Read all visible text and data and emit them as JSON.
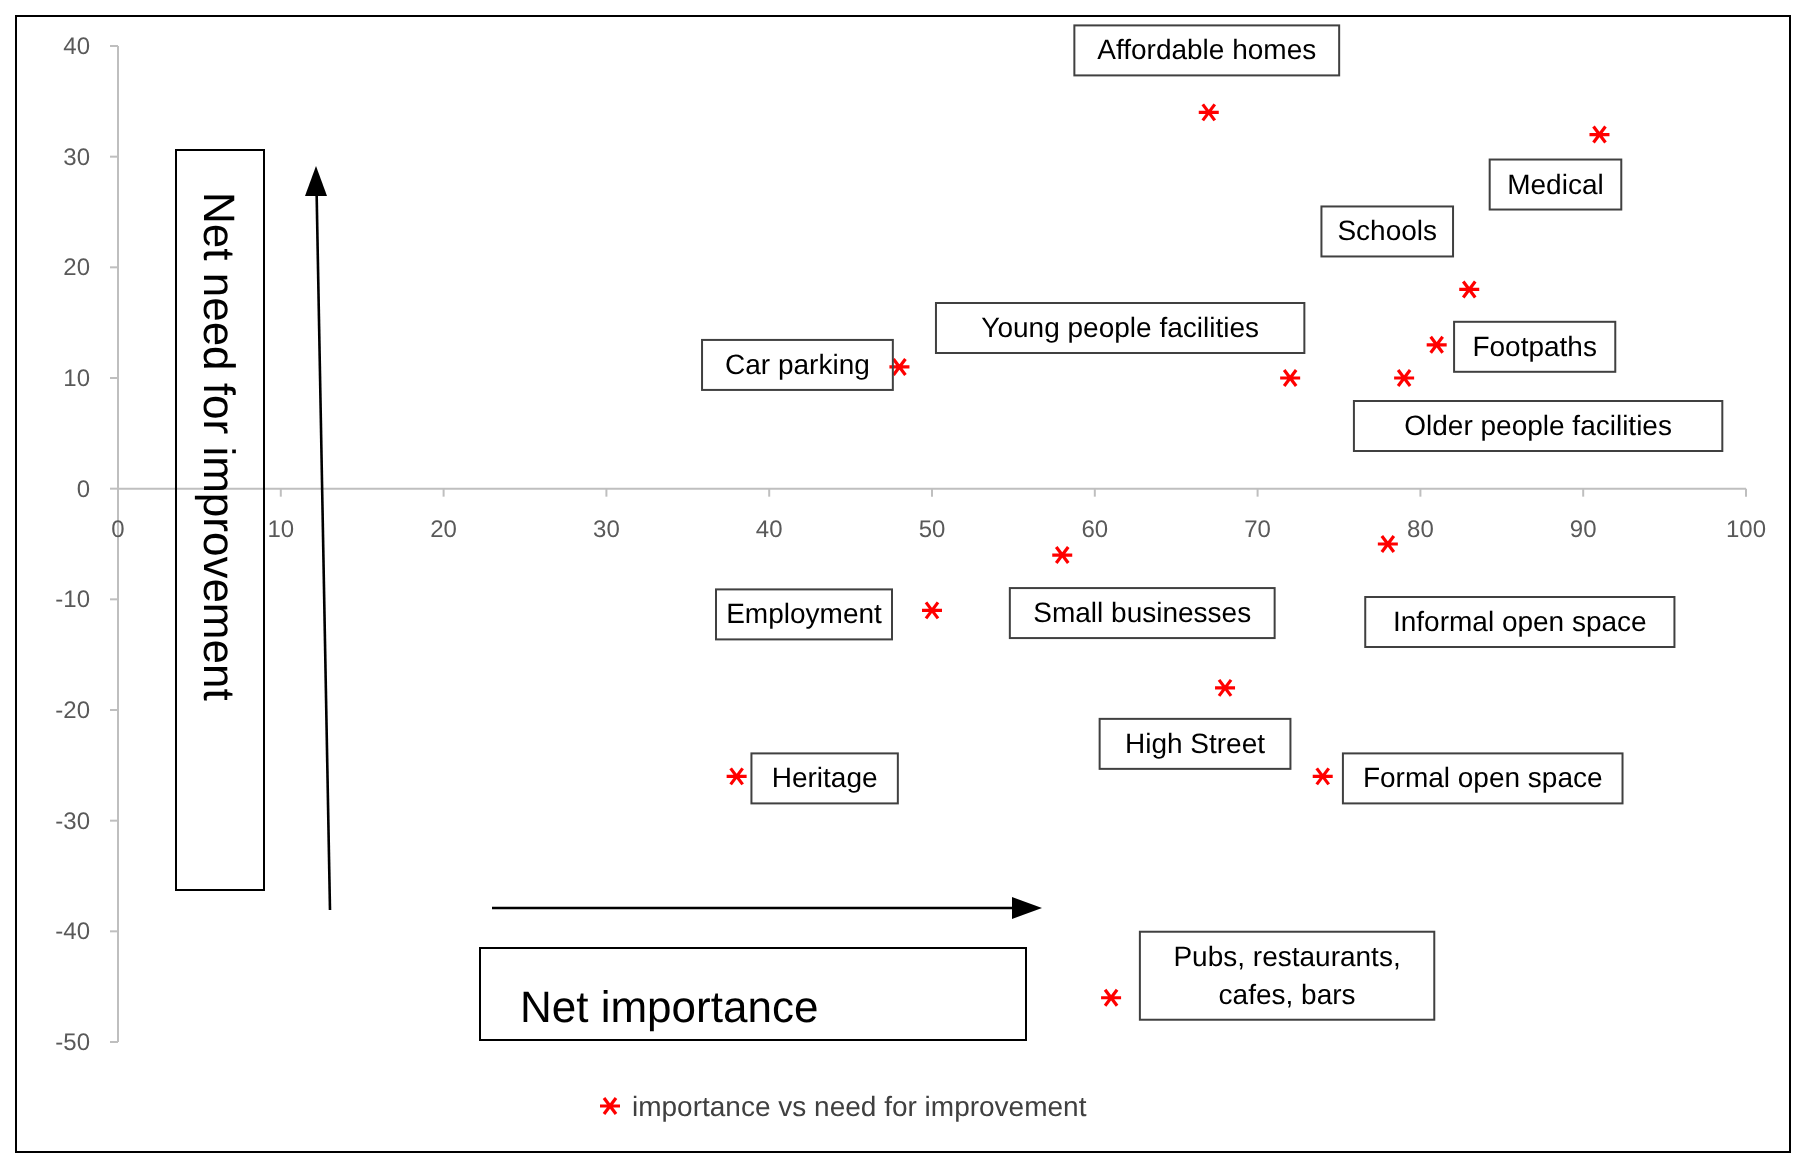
{
  "chart_data": {
    "type": "scatter",
    "xlabel": "Net importance",
    "ylabel": "Net need for improvement",
    "xlim": [
      0,
      100
    ],
    "xticks": [
      0,
      10,
      20,
      30,
      40,
      50,
      60,
      70,
      80,
      90,
      100
    ],
    "ylim": [
      -50,
      40
    ],
    "yticks": [
      -50,
      -40,
      -30,
      -20,
      -10,
      0,
      10,
      20,
      30,
      40
    ],
    "grid": false,
    "legend": "bottom",
    "marker": "cross",
    "series": [
      {
        "name": "importance vs need for improvement",
        "color": "#ff0000",
        "x": [
          67,
          91,
          83,
          81,
          79,
          72,
          48,
          78,
          58,
          50,
          68,
          38,
          74,
          61
        ],
        "values": [
          34,
          32,
          18,
          13,
          10,
          10,
          11,
          -5,
          -6,
          -11,
          -18,
          -26,
          -26,
          -46
        ]
      }
    ],
    "annotations": [
      {
        "text": "Affordable homes",
        "x": 67,
        "y": 34
      },
      {
        "text": "Medical",
        "x": 91,
        "y": 32
      },
      {
        "text": "Schools",
        "x": 83,
        "y": 18
      },
      {
        "text": "Footpaths",
        "x": 81,
        "y": 13
      },
      {
        "text": "Older people facilities",
        "x": 79,
        "y": 10
      },
      {
        "text": "Young people facilities",
        "x": 72,
        "y": 10
      },
      {
        "text": "Car parking",
        "x": 48,
        "y": 11
      },
      {
        "text": "Informal open space",
        "x": 78,
        "y": -5
      },
      {
        "text": "Small businesses",
        "x": 58,
        "y": -6
      },
      {
        "text": "Employment",
        "x": 50,
        "y": -11
      },
      {
        "text": "High Street",
        "x": 68,
        "y": -18
      },
      {
        "text": "Heritage",
        "x": 38,
        "y": -26
      },
      {
        "text": "Formal open space",
        "x": 74,
        "y": -26
      },
      {
        "text": "Pubs, restaurants,\ncafes, bars",
        "x": 61,
        "y": -46
      }
    ]
  }
}
